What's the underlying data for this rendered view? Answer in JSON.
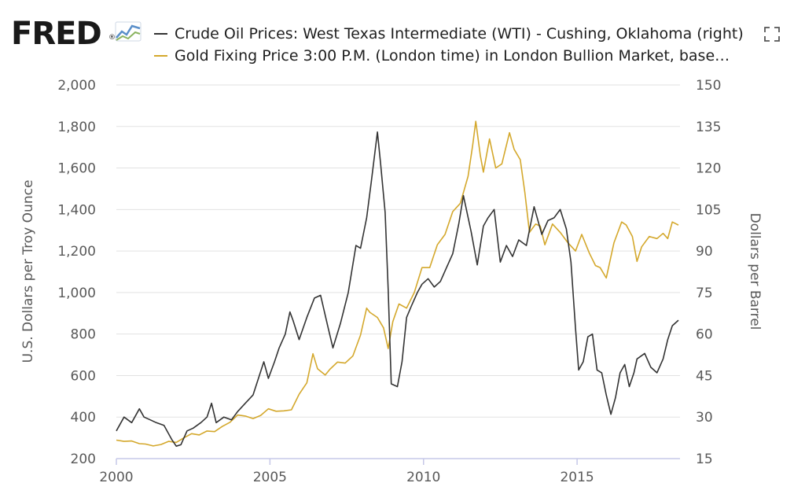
{
  "brand": {
    "name": "FRED",
    "trademark": "®"
  },
  "colors": {
    "oil": "#333333",
    "gold": "#d4a82c",
    "grid": "#e2e2e2",
    "axis": "#c6c8e8"
  },
  "chart_data": {
    "type": "line",
    "title": "",
    "x_ticks": [
      "2000",
      "2005",
      "2010",
      "2015"
    ],
    "x_tick_values": [
      2000,
      2005,
      2010,
      2015
    ],
    "xlim": [
      2000,
      2018.35
    ],
    "left_axis": {
      "label": "U.S. Dollars per Troy Ounce",
      "ticks": [
        "200",
        "400",
        "600",
        "800",
        "1,000",
        "1,200",
        "1,400",
        "1,600",
        "1,800",
        "2,000"
      ],
      "tick_values": [
        200,
        400,
        600,
        800,
        1000,
        1200,
        1400,
        1600,
        1800,
        2000
      ],
      "ylim": [
        200,
        2000
      ]
    },
    "right_axis": {
      "label": "Dollars per Barrel",
      "ticks": [
        "15",
        "30",
        "45",
        "60",
        "75",
        "90",
        "105",
        "120",
        "135",
        "150"
      ],
      "tick_values": [
        15,
        30,
        45,
        60,
        75,
        90,
        105,
        120,
        135,
        150
      ],
      "ylim": [
        15,
        150
      ]
    },
    "series": [
      {
        "name": "Crude Oil Prices: West Texas Intermediate (WTI) - Cushing, Oklahoma (right)",
        "axis": "right",
        "color": "#333333",
        "points": [
          [
            2000.0,
            25
          ],
          [
            2000.25,
            30
          ],
          [
            2000.5,
            28
          ],
          [
            2000.75,
            33
          ],
          [
            2000.9,
            30
          ],
          [
            2001.1,
            29
          ],
          [
            2001.3,
            28
          ],
          [
            2001.55,
            27
          ],
          [
            2001.8,
            22
          ],
          [
            2001.95,
            19.5
          ],
          [
            2002.1,
            20
          ],
          [
            2002.3,
            25
          ],
          [
            2002.5,
            26
          ],
          [
            2002.75,
            28
          ],
          [
            2002.95,
            30
          ],
          [
            2003.1,
            35
          ],
          [
            2003.25,
            28
          ],
          [
            2003.5,
            30
          ],
          [
            2003.75,
            29
          ],
          [
            2003.95,
            32
          ],
          [
            2004.2,
            35
          ],
          [
            2004.45,
            38
          ],
          [
            2004.8,
            50
          ],
          [
            2004.95,
            44
          ],
          [
            2005.15,
            50
          ],
          [
            2005.3,
            55
          ],
          [
            2005.5,
            60
          ],
          [
            2005.65,
            68
          ],
          [
            2005.75,
            65
          ],
          [
            2005.95,
            58
          ],
          [
            2006.2,
            66
          ],
          [
            2006.45,
            73
          ],
          [
            2006.65,
            74
          ],
          [
            2006.9,
            62
          ],
          [
            2007.05,
            55
          ],
          [
            2007.3,
            64
          ],
          [
            2007.55,
            75
          ],
          [
            2007.8,
            92
          ],
          [
            2007.95,
            91
          ],
          [
            2008.15,
            102
          ],
          [
            2008.3,
            115
          ],
          [
            2008.5,
            133
          ],
          [
            2008.6,
            122
          ],
          [
            2008.75,
            104
          ],
          [
            2008.85,
            76
          ],
          [
            2008.95,
            42
          ],
          [
            2009.15,
            41
          ],
          [
            2009.3,
            50
          ],
          [
            2009.45,
            66
          ],
          [
            2009.6,
            70
          ],
          [
            2009.8,
            75
          ],
          [
            2009.95,
            78
          ],
          [
            2010.15,
            80
          ],
          [
            2010.35,
            77
          ],
          [
            2010.55,
            79
          ],
          [
            2010.75,
            84
          ],
          [
            2010.95,
            89
          ],
          [
            2011.15,
            100
          ],
          [
            2011.3,
            110
          ],
          [
            2011.55,
            97
          ],
          [
            2011.75,
            85
          ],
          [
            2011.95,
            99
          ],
          [
            2012.1,
            102
          ],
          [
            2012.3,
            105
          ],
          [
            2012.5,
            86
          ],
          [
            2012.7,
            92
          ],
          [
            2012.9,
            88
          ],
          [
            2013.1,
            94
          ],
          [
            2013.35,
            92
          ],
          [
            2013.6,
            106
          ],
          [
            2013.85,
            96
          ],
          [
            2014.05,
            101
          ],
          [
            2014.25,
            102
          ],
          [
            2014.45,
            105
          ],
          [
            2014.65,
            98
          ],
          [
            2014.8,
            86
          ],
          [
            2014.95,
            62
          ],
          [
            2015.05,
            47
          ],
          [
            2015.2,
            50
          ],
          [
            2015.35,
            59
          ],
          [
            2015.5,
            60
          ],
          [
            2015.65,
            47
          ],
          [
            2015.8,
            46
          ],
          [
            2015.95,
            38
          ],
          [
            2016.1,
            31
          ],
          [
            2016.25,
            37
          ],
          [
            2016.4,
            46
          ],
          [
            2016.55,
            49
          ],
          [
            2016.7,
            41
          ],
          [
            2016.85,
            46
          ],
          [
            2016.95,
            51
          ],
          [
            2017.2,
            53
          ],
          [
            2017.4,
            48
          ],
          [
            2017.6,
            46
          ],
          [
            2017.8,
            51
          ],
          [
            2017.95,
            58
          ],
          [
            2018.1,
            63
          ],
          [
            2018.3,
            65
          ]
        ]
      },
      {
        "name": "Gold Fixing Price 3:00 P.M. (London time) in London Bullion Market, base…",
        "axis": "left",
        "color": "#d4a82c",
        "points": [
          [
            2000.0,
            289
          ],
          [
            2000.25,
            283
          ],
          [
            2000.5,
            285
          ],
          [
            2000.75,
            272
          ],
          [
            2000.95,
            270
          ],
          [
            2001.2,
            261
          ],
          [
            2001.45,
            268
          ],
          [
            2001.7,
            283
          ],
          [
            2001.95,
            278
          ],
          [
            2002.2,
            300
          ],
          [
            2002.45,
            320
          ],
          [
            2002.7,
            314
          ],
          [
            2002.95,
            333
          ],
          [
            2003.2,
            330
          ],
          [
            2003.45,
            355
          ],
          [
            2003.7,
            375
          ],
          [
            2003.95,
            410
          ],
          [
            2004.2,
            405
          ],
          [
            2004.45,
            393
          ],
          [
            2004.7,
            408
          ],
          [
            2004.95,
            440
          ],
          [
            2005.2,
            428
          ],
          [
            2005.45,
            430
          ],
          [
            2005.7,
            435
          ],
          [
            2005.95,
            510
          ],
          [
            2006.2,
            565
          ],
          [
            2006.4,
            705
          ],
          [
            2006.55,
            633
          ],
          [
            2006.8,
            603
          ],
          [
            2006.95,
            630
          ],
          [
            2007.2,
            665
          ],
          [
            2007.45,
            660
          ],
          [
            2007.7,
            695
          ],
          [
            2007.95,
            795
          ],
          [
            2008.15,
            925
          ],
          [
            2008.25,
            905
          ],
          [
            2008.5,
            880
          ],
          [
            2008.7,
            830
          ],
          [
            2008.85,
            730
          ],
          [
            2009.0,
            860
          ],
          [
            2009.2,
            945
          ],
          [
            2009.45,
            925
          ],
          [
            2009.7,
            1000
          ],
          [
            2009.95,
            1120
          ],
          [
            2010.2,
            1120
          ],
          [
            2010.45,
            1230
          ],
          [
            2010.7,
            1280
          ],
          [
            2010.95,
            1390
          ],
          [
            2011.2,
            1430
          ],
          [
            2011.45,
            1560
          ],
          [
            2011.6,
            1710
          ],
          [
            2011.7,
            1825
          ],
          [
            2011.85,
            1660
          ],
          [
            2011.95,
            1580
          ],
          [
            2012.15,
            1740
          ],
          [
            2012.35,
            1600
          ],
          [
            2012.55,
            1620
          ],
          [
            2012.8,
            1770
          ],
          [
            2012.95,
            1690
          ],
          [
            2013.15,
            1640
          ],
          [
            2013.3,
            1480
          ],
          [
            2013.45,
            1290
          ],
          [
            2013.65,
            1330
          ],
          [
            2013.8,
            1320
          ],
          [
            2013.95,
            1230
          ],
          [
            2014.2,
            1330
          ],
          [
            2014.45,
            1290
          ],
          [
            2014.7,
            1240
          ],
          [
            2014.95,
            1200
          ],
          [
            2015.15,
            1280
          ],
          [
            2015.4,
            1190
          ],
          [
            2015.6,
            1130
          ],
          [
            2015.75,
            1120
          ],
          [
            2015.95,
            1070
          ],
          [
            2016.2,
            1240
          ],
          [
            2016.45,
            1340
          ],
          [
            2016.6,
            1325
          ],
          [
            2016.8,
            1270
          ],
          [
            2016.95,
            1150
          ],
          [
            2017.1,
            1220
          ],
          [
            2017.35,
            1270
          ],
          [
            2017.6,
            1260
          ],
          [
            2017.8,
            1285
          ],
          [
            2017.95,
            1260
          ],
          [
            2018.1,
            1340
          ],
          [
            2018.3,
            1325
          ]
        ]
      }
    ],
    "grid": true,
    "legend_position": "top"
  }
}
